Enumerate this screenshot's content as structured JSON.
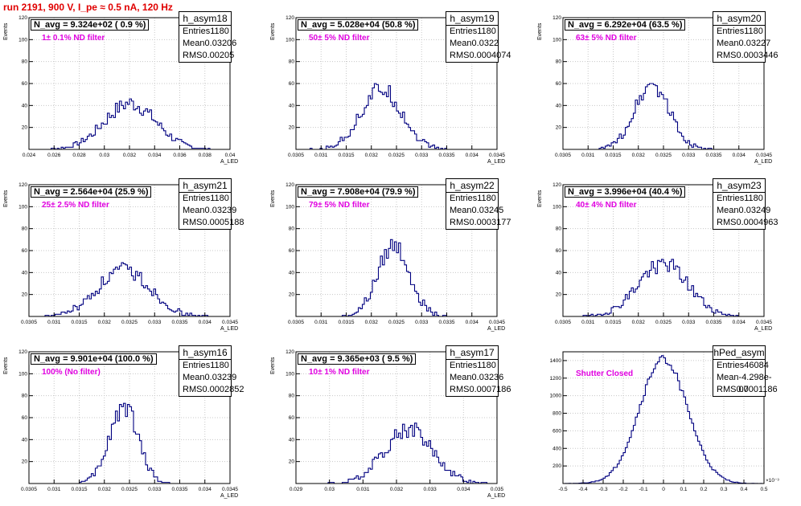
{
  "header": {
    "title": "run 2191,   900 V, I_pe ≈ 0.5 nA, 120 Hz"
  },
  "colors": {
    "histogram": "#000080",
    "grid": "#c8c8c8",
    "title_red": "#e00000",
    "label_magenta": "#e000e0"
  },
  "chart_data": [
    {
      "type": "bar",
      "name": "h_asym18",
      "n_avg": "N_avg = 9.324e+02 ( 0.9 %)",
      "filter": "1± 0.1% ND filter",
      "stats": {
        "entries_label": "Entries",
        "entries": "1180",
        "mean_label": "Mean",
        "mean": "0.03206",
        "rms_label": "RMS",
        "rms": "0.00205"
      },
      "ylabel": "Events",
      "xlabel": "A_LED",
      "xlim": [
        0.024,
        0.04
      ],
      "ylim": [
        0,
        120
      ],
      "xticks": [
        "0.024",
        "0.026",
        "0.028",
        "0.03",
        "0.032",
        "0.034",
        "0.036",
        "0.038",
        "0.04"
      ],
      "yticks": [
        "20",
        "40",
        "60",
        "80",
        "100",
        "120"
      ],
      "mean_value": 0.03206,
      "rms_value": 0.00205,
      "peak": 42,
      "bins": 100
    },
    {
      "type": "bar",
      "name": "h_asym19",
      "n_avg": "N_avg = 5.028e+04 (50.8 %)",
      "filter": "50± 5% ND filter",
      "stats": {
        "entries_label": "Entries",
        "entries": "1180",
        "mean_label": "Mean",
        "mean": "0.0322",
        "rms_label": "RMS",
        "rms": "0.0004074"
      },
      "ylabel": "Events",
      "xlabel": "A_LED",
      "xlim": [
        0.0305,
        0.0345
      ],
      "ylim": [
        0,
        120
      ],
      "xticks": [
        "0.0305",
        "0.031",
        "0.0315",
        "0.032",
        "0.0325",
        "0.033",
        "0.0335",
        "0.034",
        "0.0345"
      ],
      "yticks": [
        "20",
        "40",
        "60",
        "80",
        "100",
        "120"
      ],
      "mean_value": 0.0322,
      "rms_value": 0.0004074,
      "peak": 55,
      "bins": 100
    },
    {
      "type": "bar",
      "name": "h_asym20",
      "n_avg": "N_avg = 6.292e+04 (63.5 %)",
      "filter": "63± 5% ND filter",
      "stats": {
        "entries_label": "Entries",
        "entries": "1180",
        "mean_label": "Mean",
        "mean": "0.03227",
        "rms_label": "RMS",
        "rms": "0.0003446"
      },
      "ylabel": "Events",
      "xlabel": "A_LED",
      "xlim": [
        0.0305,
        0.0345
      ],
      "ylim": [
        0,
        120
      ],
      "xticks": [
        "0.0305",
        "0.031",
        "0.0315",
        "0.032",
        "0.0325",
        "0.033",
        "0.0335",
        "0.034",
        "0.0345"
      ],
      "yticks": [
        "20",
        "40",
        "60",
        "80",
        "100",
        "120"
      ],
      "mean_value": 0.03227,
      "rms_value": 0.0003446,
      "peak": 60,
      "bins": 100
    },
    {
      "type": "bar",
      "name": "h_asym21",
      "n_avg": "N_avg = 2.564e+04 (25.9 %)",
      "filter": "25± 2.5% ND filter",
      "stats": {
        "entries_label": "Entries",
        "entries": "1180",
        "mean_label": "Mean",
        "mean": "0.03239",
        "rms_label": "RMS",
        "rms": "0.0005188"
      },
      "ylabel": "Events",
      "xlabel": "A_LED",
      "xlim": [
        0.0305,
        0.0345
      ],
      "ylim": [
        0,
        120
      ],
      "xticks": [
        "0.0305",
        "0.031",
        "0.0315",
        "0.032",
        "0.0325",
        "0.033",
        "0.0335",
        "0.034",
        "0.0345"
      ],
      "yticks": [
        "20",
        "40",
        "60",
        "80",
        "100",
        "120"
      ],
      "mean_value": 0.03239,
      "rms_value": 0.0005188,
      "peak": 42,
      "bins": 100
    },
    {
      "type": "bar",
      "name": "h_asym22",
      "n_avg": "N_avg = 7.908e+04 (79.9 %)",
      "filter": "79± 5% ND filter",
      "stats": {
        "entries_label": "Entries",
        "entries": "1180",
        "mean_label": "Mean",
        "mean": "0.03245",
        "rms_label": "RMS",
        "rms": "0.0003177"
      },
      "ylabel": "Events",
      "xlabel": "A_LED",
      "xlim": [
        0.0305,
        0.0345
      ],
      "ylim": [
        0,
        120
      ],
      "xticks": [
        "0.0305",
        "0.031",
        "0.0315",
        "0.032",
        "0.0325",
        "0.033",
        "0.0335",
        "0.034",
        "0.0345"
      ],
      "yticks": [
        "20",
        "40",
        "60",
        "80",
        "100",
        "120"
      ],
      "mean_value": 0.03245,
      "rms_value": 0.0003177,
      "peak": 65,
      "bins": 100
    },
    {
      "type": "bar",
      "name": "h_asym23",
      "n_avg": "N_avg = 3.996e+04 (40.4 %)",
      "filter": "40± 4% ND filter",
      "stats": {
        "entries_label": "Entries",
        "entries": "1180",
        "mean_label": "Mean",
        "mean": "0.03249",
        "rms_label": "RMS",
        "rms": "0.0004963"
      },
      "ylabel": "Events",
      "xlabel": "A_LED",
      "xlim": [
        0.0305,
        0.0345
      ],
      "ylim": [
        0,
        120
      ],
      "xticks": [
        "0.0305",
        "0.031",
        "0.0315",
        "0.032",
        "0.0325",
        "0.033",
        "0.0335",
        "0.034",
        "0.0345"
      ],
      "yticks": [
        "20",
        "40",
        "60",
        "80",
        "100",
        "120"
      ],
      "mean_value": 0.03249,
      "rms_value": 0.0004963,
      "peak": 48,
      "bins": 100
    },
    {
      "type": "bar",
      "name": "h_asym16",
      "n_avg": "N_avg = 9.901e+04 (100.0 %)",
      "filter": "100% (No filter)",
      "stats": {
        "entries_label": "Entries",
        "entries": "1180",
        "mean_label": "Mean",
        "mean": "0.03239",
        "rms_label": "RMS",
        "rms": "0.0002852"
      },
      "ylabel": "Events",
      "xlabel": "A_LED",
      "xlim": [
        0.0305,
        0.0345
      ],
      "ylim": [
        0,
        120
      ],
      "xticks": [
        "0.0305",
        "0.031",
        "0.0315",
        "0.032",
        "0.0325",
        "0.033",
        "0.0335",
        "0.034",
        "0.0345"
      ],
      "yticks": [
        "20",
        "40",
        "60",
        "80",
        "100",
        "120"
      ],
      "mean_value": 0.03239,
      "rms_value": 0.0002852,
      "peak": 70,
      "bins": 100
    },
    {
      "type": "bar",
      "name": "h_asym17",
      "n_avg": "N_avg = 9.365e+03 ( 9.5 %)",
      "filter": "10± 1% ND filter",
      "stats": {
        "entries_label": "Entries",
        "entries": "1180",
        "mean_label": "Mean",
        "mean": "0.03236",
        "rms_label": "RMS",
        "rms": "0.0007186"
      },
      "ylabel": "Events",
      "xlabel": "A_LED",
      "xlim": [
        0.029,
        0.035
      ],
      "ylim": [
        0,
        120
      ],
      "xticks": [
        "0.029",
        "0.03",
        "0.031",
        "0.032",
        "0.033",
        "0.034",
        "0.035"
      ],
      "yticks": [
        "20",
        "40",
        "60",
        "80",
        "100",
        "120"
      ],
      "mean_value": 0.03236,
      "rms_value": 0.0007186,
      "peak": 50,
      "bins": 100
    },
    {
      "type": "bar",
      "name": "hPed_asym",
      "n_avg": "",
      "filter": "Shutter Closed",
      "stats": {
        "entries_label": "Entries",
        "entries": "46084",
        "mean_label": "Mean",
        "mean": "-4.298e-07",
        "rms_label": "RMS",
        "rms": "0.0001186"
      },
      "ylabel": "",
      "xlabel": "",
      "xlim": [
        -0.5,
        0.5
      ],
      "ylim": [
        0,
        1500
      ],
      "x_exponent": "×10⁻³",
      "xticks": [
        "-0.5",
        "-0.4",
        "-0.3",
        "-0.2",
        "-0.1",
        "0",
        "0.1",
        "0.2",
        "0.3",
        "0.4",
        "0.5"
      ],
      "yticks": [
        "200",
        "400",
        "600",
        "800",
        "1000",
        "1200",
        "1400"
      ],
      "mean_value": 0.0,
      "rms_value": 0.1186,
      "peak": 1420,
      "bins": 100
    }
  ]
}
